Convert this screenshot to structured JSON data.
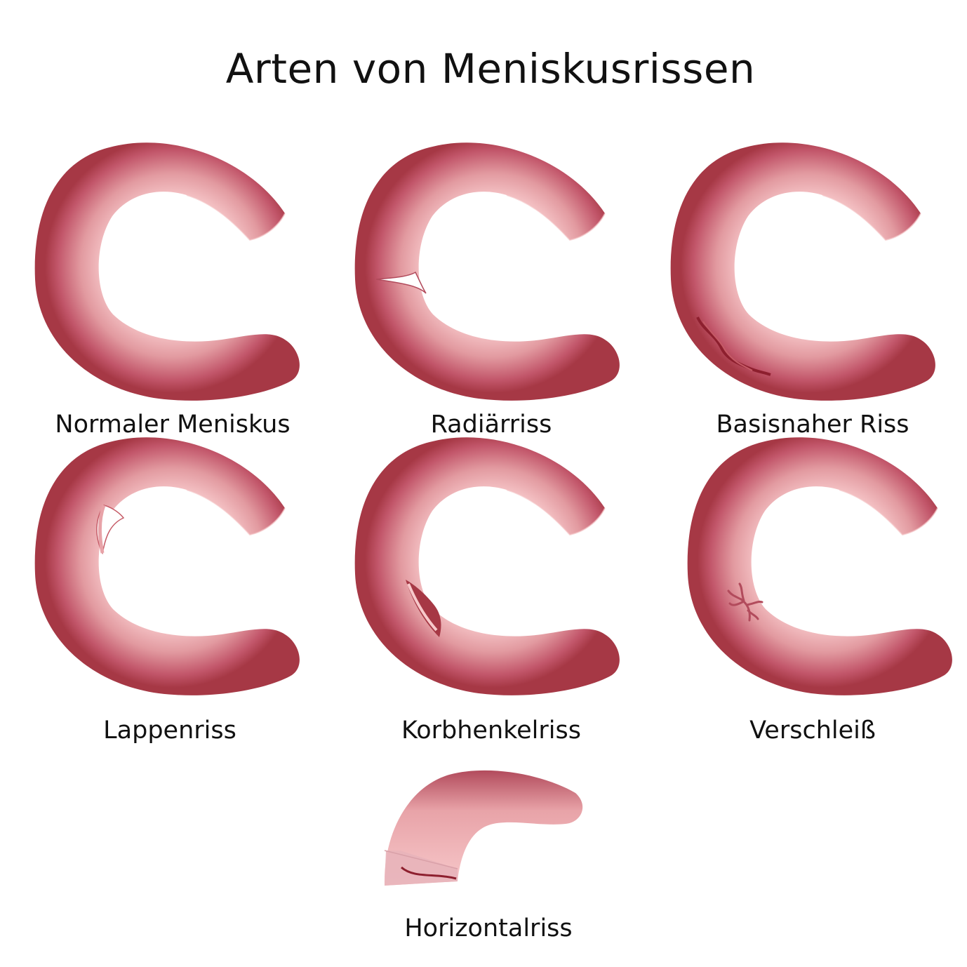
{
  "title": "Arten von Meniskusrissen",
  "colors": {
    "tissue_light": "#f7c8ca",
    "tissue_mid": "#e08f95",
    "tissue_dark": "#a63845",
    "tear": "#8d1f2e"
  },
  "items": [
    {
      "label": "Normaler Meniskus"
    },
    {
      "label": "Radiärriss"
    },
    {
      "label": "Basisnaher Riss"
    },
    {
      "label": "Lappenriss"
    },
    {
      "label": "Korbhenkelriss"
    },
    {
      "label": "Verschleiß"
    },
    {
      "label": "Horizontalriss"
    }
  ]
}
